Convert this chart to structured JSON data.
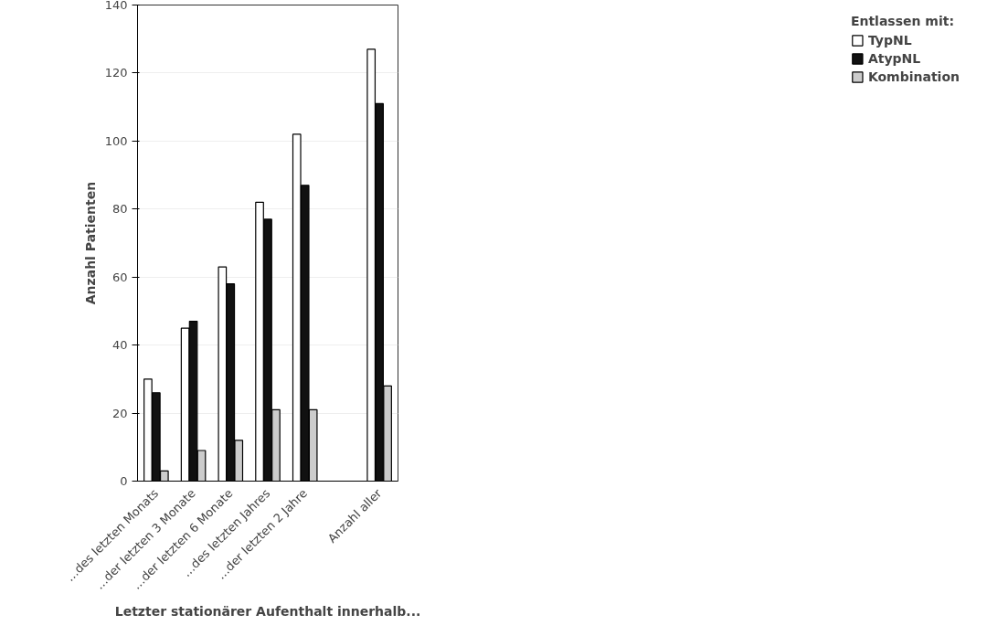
{
  "chart_data": {
    "type": "bar",
    "ylabel": "Anzahl Patienten",
    "xlabel": "Letzter stationärer Aufenthalt innerhalb...",
    "legend_title": "Entlassen mit:",
    "categories": [
      "…des letzten Monats",
      "…der letzten 3 Monate",
      "…der letzten 6 Monate",
      "…des letzten Jahres",
      "…der letzten 2 Jahre",
      null,
      "Anzahl aller"
    ],
    "series": [
      {
        "name": "TypNL",
        "color": "#ffffff",
        "values": [
          30,
          45,
          63,
          82,
          102,
          null,
          127
        ]
      },
      {
        "name": "AtypNL",
        "color": "#111111",
        "values": [
          26,
          47,
          58,
          77,
          87,
          null,
          111
        ]
      },
      {
        "name": "Kombination",
        "color": "#cccccc",
        "values": [
          3,
          9,
          12,
          21,
          21,
          null,
          28
        ]
      }
    ],
    "ylim": [
      0,
      140
    ],
    "yticks": [
      0,
      20,
      40,
      60,
      80,
      100,
      120,
      140
    ],
    "grid": "y",
    "legend": "right"
  }
}
